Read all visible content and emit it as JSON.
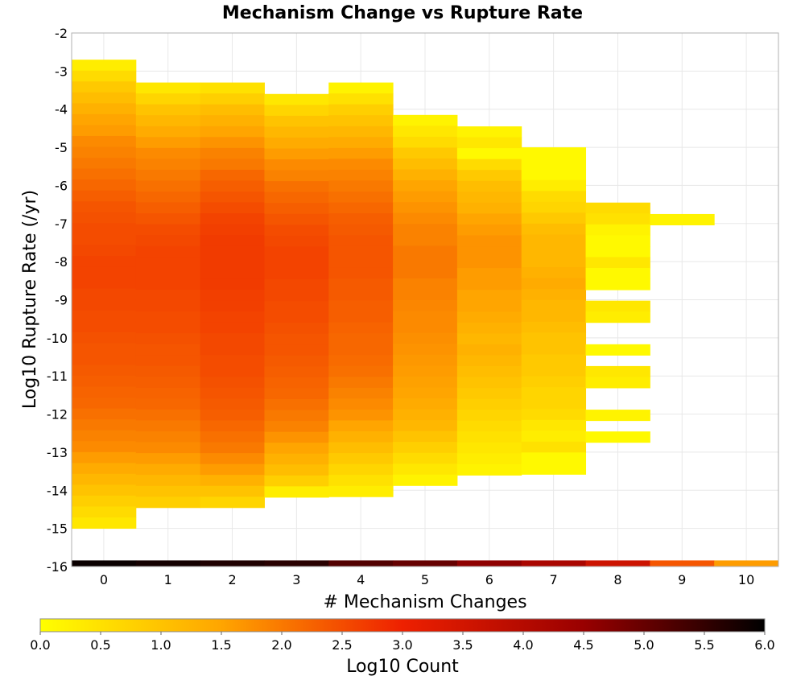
{
  "chart_data": {
    "type": "heatmap",
    "title": "Mechanism Change vs Rupture Rate",
    "xlabel": "# Mechanism Changes",
    "ylabel": "Log10 Rupture Rate (/yr)",
    "colorbar_label": "Log10 Count",
    "x_ticks": [
      "0",
      "1",
      "2",
      "3",
      "4",
      "5",
      "6",
      "7",
      "8",
      "9",
      "10"
    ],
    "y_ticks": [
      "-2",
      "-3",
      "-4",
      "-5",
      "-6",
      "-7",
      "-8",
      "-9",
      "-10",
      "-11",
      "-12",
      "-13",
      "-14",
      "-15",
      "-16"
    ],
    "colorbar_ticks": [
      "0.0",
      "0.5",
      "1.0",
      "1.5",
      "2.0",
      "2.5",
      "3.0",
      "3.5",
      "4.0",
      "4.5",
      "5.0",
      "5.5",
      "6.0"
    ],
    "xlim": [
      -0.5,
      10.5
    ],
    "ylim": [
      -16,
      -2
    ],
    "clim": [
      0,
      6
    ],
    "colormap": [
      "#ffff00",
      "#ffa500",
      "#ee2000",
      "#990000",
      "#000000"
    ],
    "grid": true,
    "bin_height": 0.286,
    "columns": [
      {
        "x": 0,
        "top": -2.7,
        "counts": [
          0.3,
          0.6,
          0.9,
          1.1,
          1.3,
          1.5,
          1.6,
          1.8,
          1.9,
          2.0,
          2.1,
          2.2,
          2.3,
          2.4,
          2.45,
          2.5,
          2.5,
          2.55,
          2.6,
          2.6,
          2.6,
          2.55,
          2.55,
          2.5,
          2.5,
          2.45,
          2.4,
          2.4,
          2.35,
          2.3,
          2.25,
          2.2,
          2.1,
          2.0,
          1.9,
          1.8,
          1.6,
          1.4,
          1.2,
          1.0,
          0.8,
          0.6,
          0.4
        ]
      },
      {
        "x": 1,
        "top": -3.3,
        "counts": [
          0.4,
          0.7,
          1.0,
          1.2,
          1.4,
          1.6,
          1.8,
          1.9,
          2.0,
          2.1,
          2.2,
          2.3,
          2.4,
          2.5,
          2.55,
          2.6,
          2.6,
          2.6,
          2.6,
          2.55,
          2.55,
          2.5,
          2.5,
          2.45,
          2.4,
          2.4,
          2.35,
          2.3,
          2.25,
          2.2,
          2.1,
          2.0,
          1.9,
          1.8,
          1.6,
          1.4,
          1.2,
          1.0,
          0.8
        ]
      },
      {
        "x": 2,
        "top": -3.3,
        "counts": [
          0.5,
          0.8,
          1.1,
          1.3,
          1.5,
          1.7,
          1.9,
          2.0,
          2.2,
          2.3,
          2.4,
          2.5,
          2.6,
          2.65,
          2.7,
          2.7,
          2.7,
          2.7,
          2.7,
          2.65,
          2.65,
          2.6,
          2.6,
          2.55,
          2.55,
          2.5,
          2.5,
          2.45,
          2.4,
          2.35,
          2.3,
          2.2,
          2.1,
          2.0,
          1.8,
          1.6,
          1.3,
          1.0,
          0.7
        ]
      },
      {
        "x": 3,
        "top": -3.6,
        "counts": [
          0.4,
          0.7,
          1.0,
          1.2,
          1.4,
          1.6,
          1.8,
          1.9,
          2.1,
          2.2,
          2.3,
          2.4,
          2.5,
          2.55,
          2.6,
          2.6,
          2.6,
          2.55,
          2.55,
          2.5,
          2.5,
          2.45,
          2.4,
          2.4,
          2.35,
          2.3,
          2.25,
          2.2,
          2.1,
          2.0,
          1.9,
          1.7,
          1.5,
          1.3,
          1.1,
          0.8,
          0.3
        ]
      },
      {
        "x": 4,
        "top": -3.3,
        "counts": [
          0.2,
          0.5,
          0.8,
          1.0,
          1.2,
          1.4,
          1.6,
          1.8,
          1.9,
          2.0,
          2.1,
          2.2,
          2.3,
          2.35,
          2.4,
          2.4,
          2.4,
          2.4,
          2.35,
          2.35,
          2.3,
          2.3,
          2.25,
          2.2,
          2.2,
          2.15,
          2.1,
          2.0,
          1.9,
          1.8,
          1.7,
          1.5,
          1.3,
          1.1,
          0.9,
          0.7,
          0.5,
          0.3
        ]
      },
      {
        "x": 5,
        "top": -4.15,
        "counts": [
          0.2,
          0.4,
          0.6,
          0.9,
          1.1,
          1.3,
          1.5,
          1.6,
          1.7,
          1.8,
          1.9,
          1.9,
          2.0,
          2.0,
          2.0,
          1.9,
          1.9,
          1.85,
          1.8,
          1.8,
          1.75,
          1.7,
          1.65,
          1.6,
          1.55,
          1.5,
          1.4,
          1.3,
          1.2,
          1.0,
          0.8,
          0.6,
          0.4,
          0.2
        ]
      },
      {
        "x": 6,
        "top": -4.45,
        "counts": [
          0.2,
          0.4,
          0.1,
          0.6,
          0.9,
          1.1,
          1.2,
          1.3,
          1.5,
          1.6,
          1.7,
          1.7,
          1.7,
          1.6,
          1.6,
          1.5,
          1.5,
          1.4,
          1.3,
          1.2,
          1.3,
          1.2,
          1.1,
          1.0,
          0.9,
          0.8,
          0.7,
          0.6,
          0.5,
          0.4,
          0.3,
          0.2
        ]
      },
      {
        "x": 7,
        "top": -5.0,
        "counts": [
          0.1,
          0.1,
          0.1,
          0.3,
          0.6,
          0.7,
          0.9,
          1.1,
          1.2,
          1.2,
          1.2,
          1.3,
          1.4,
          1.3,
          1.2,
          1.2,
          1.1,
          1.0,
          1.0,
          0.9,
          0.9,
          0.8,
          0.7,
          0.7,
          0.6,
          0.4,
          0.3,
          0.5,
          0.1,
          0.1
        ]
      },
      {
        "x": 8,
        "top": -6.45,
        "counts": [
          0.6,
          0.5,
          0.2,
          0.1,
          0.1,
          0.4,
          0.1,
          0.1,
          null,
          0.4,
          0.3,
          null,
          null,
          0.1,
          null,
          0.4,
          0.3,
          null,
          null,
          0.2,
          null,
          0.1
        ]
      },
      {
        "x": 9,
        "top": -6.75,
        "counts": [
          0.2
        ]
      }
    ],
    "bottom_row": {
      "x": [
        0,
        1,
        2,
        3,
        4,
        5,
        6,
        7,
        8,
        9,
        10
      ],
      "values": [
        5.9,
        5.8,
        5.7,
        5.6,
        5.2,
        5.0,
        4.6,
        4.2,
        3.6,
        2.4,
        1.6
      ]
    }
  }
}
